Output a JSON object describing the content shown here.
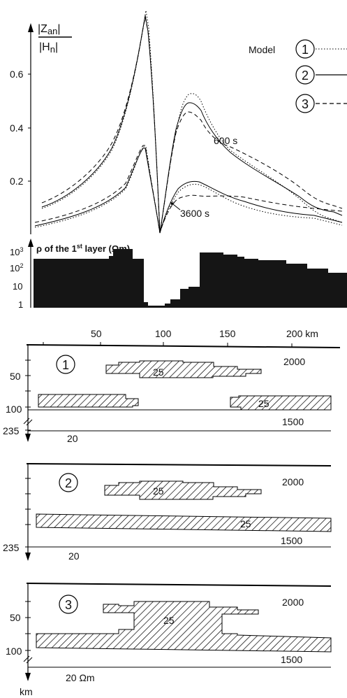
{
  "top_chart": {
    "y_label_num": "|Z",
    "y_label_num_sub": "an",
    "y_label_den": "|H",
    "y_label_den_sub": "n",
    "y_ticks": [
      "0.6",
      "0.4",
      "0.2"
    ],
    "legend_title": "Model",
    "legend_items": [
      "1",
      "2",
      "3"
    ],
    "curve_labels": [
      "600 s",
      "3600 s"
    ]
  },
  "resistivity_chart": {
    "title_rho": "ρ of the 1",
    "title_sup": "st",
    "title_rest": " layer (Ωm)",
    "y_ticks": [
      "10",
      "10",
      "10",
      "1"
    ],
    "y_tick_sups": [
      "3",
      "2",
      "",
      ""
    ]
  },
  "x_axis": {
    "ticks": [
      "50",
      "100",
      "150",
      "200 km"
    ]
  },
  "models": [
    {
      "id": "1",
      "depth_labels": [
        "50",
        "100",
        "235"
      ],
      "block_label": "25",
      "layer_label": "25",
      "upper_resistivity": "2000",
      "lower_resistivity": "1500",
      "basement_resistivity": "20"
    },
    {
      "id": "2",
      "depth_labels": [
        "235"
      ],
      "block_label": "25",
      "layer_label": "25",
      "upper_resistivity": "2000",
      "lower_resistivity": "1500",
      "basement_resistivity": "20"
    },
    {
      "id": "3",
      "depth_labels": [
        "50",
        "100"
      ],
      "block_label": "25",
      "upper_resistivity": "2000",
      "lower_resistivity": "1500",
      "basement_resistivity": "20 Ωm",
      "depth_unit": "km"
    }
  ]
}
